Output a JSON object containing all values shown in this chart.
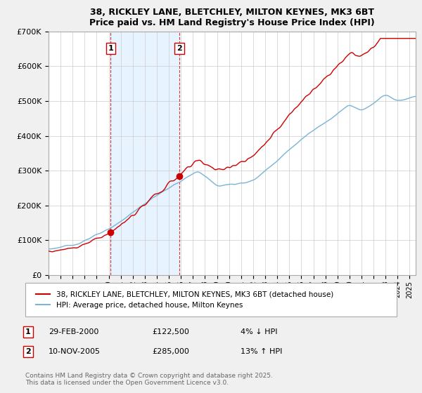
{
  "title1": "38, RICKLEY LANE, BLETCHLEY, MILTON KEYNES, MK3 6BT",
  "title2": "Price paid vs. HM Land Registry's House Price Index (HPI)",
  "bg_color": "#f0f0f0",
  "plot_bg_color": "#ffffff",
  "legend1": "38, RICKLEY LANE, BLETCHLEY, MILTON KEYNES, MK3 6BT (detached house)",
  "legend2": "HPI: Average price, detached house, Milton Keynes",
  "annotation1_label": "1",
  "annotation1_date": "29-FEB-2000",
  "annotation1_price": "£122,500",
  "annotation1_hpi": "4% ↓ HPI",
  "annotation2_label": "2",
  "annotation2_date": "10-NOV-2005",
  "annotation2_price": "£285,000",
  "annotation2_hpi": "13% ↑ HPI",
  "footer": "Contains HM Land Registry data © Crown copyright and database right 2025.\nThis data is licensed under the Open Government Licence v3.0.",
  "sale1_x": 2000.16,
  "sale1_y": 122500,
  "sale2_x": 2005.87,
  "sale2_y": 285000,
  "hpi_color": "#7ab3d4",
  "price_color": "#cc0000",
  "vline_color": "#cc0000",
  "shade_color": "#ddeeff",
  "ylim_max": 700000,
  "xlim_min": 1995.0,
  "xlim_max": 2025.5,
  "yticks": [
    0,
    100000,
    200000,
    300000,
    400000,
    500000,
    600000,
    700000
  ]
}
